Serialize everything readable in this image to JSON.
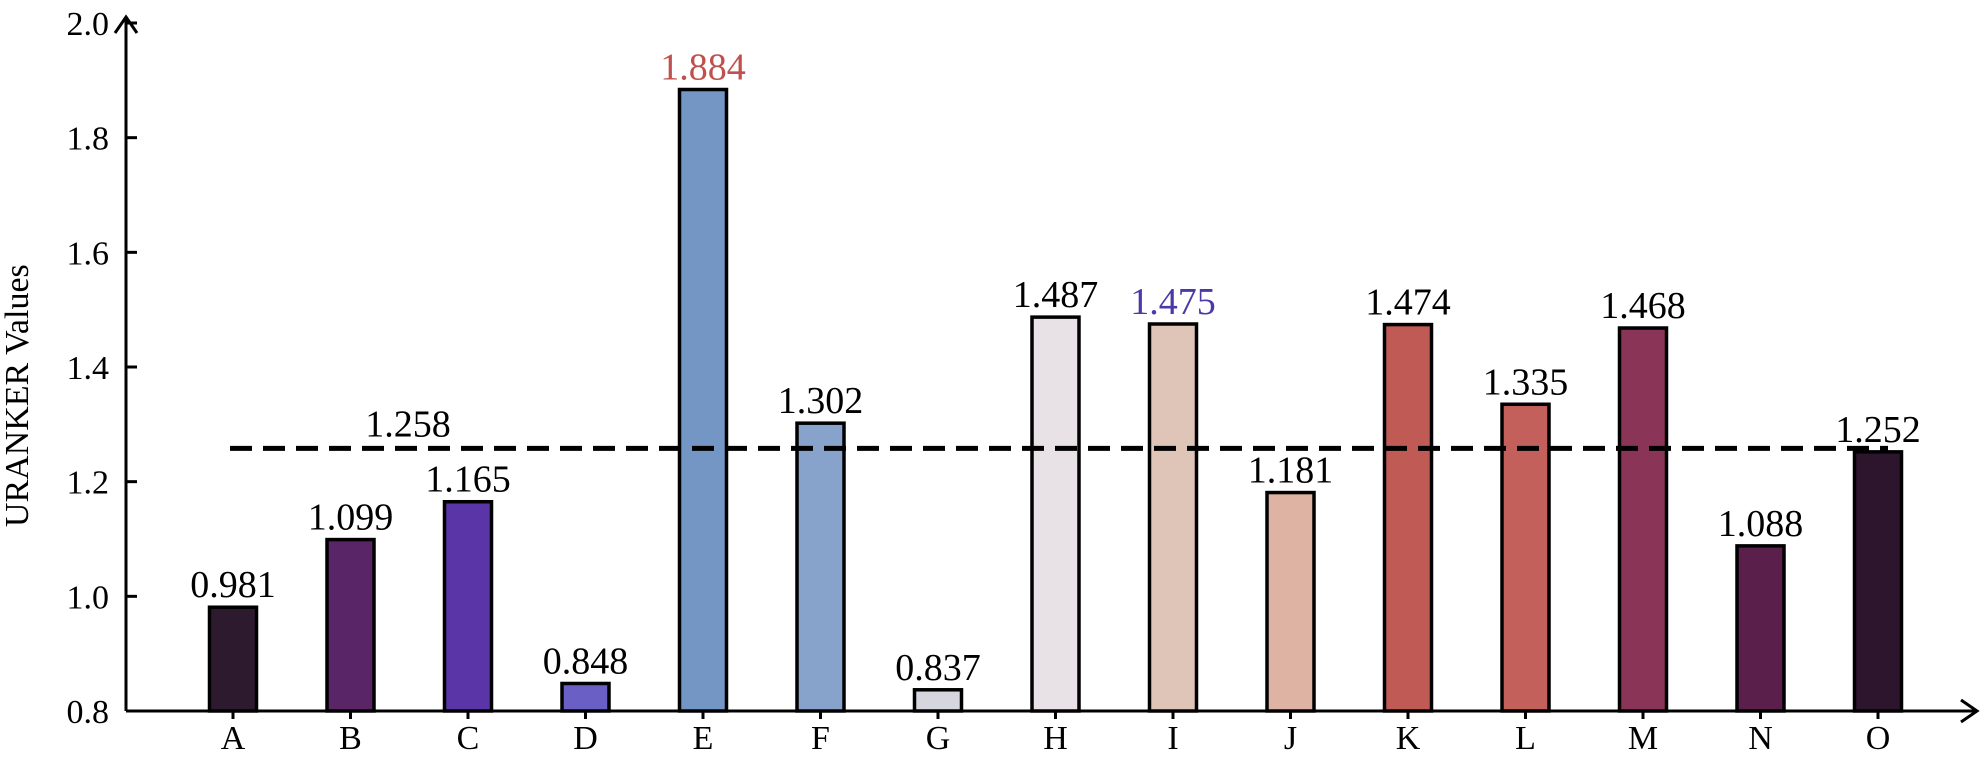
{
  "chart_data": {
    "type": "bar",
    "title": "",
    "xlabel": "",
    "ylabel": "URANKER Values",
    "ylim": [
      0.8,
      2.0
    ],
    "yticks": [
      "0.8",
      "1.0",
      "1.2",
      "1.4",
      "1.6",
      "1.8",
      "2.0"
    ],
    "grid": false,
    "categories": [
      "A",
      "B",
      "C",
      "D",
      "E",
      "F",
      "G",
      "H",
      "I",
      "J",
      "K",
      "L",
      "M",
      "N",
      "O"
    ],
    "values": [
      0.981,
      1.099,
      1.165,
      0.848,
      1.884,
      1.302,
      0.837,
      1.487,
      1.475,
      1.181,
      1.474,
      1.335,
      1.468,
      1.088,
      1.252
    ],
    "value_labels": [
      "0.981",
      "1.099",
      "1.165",
      "0.848",
      "1.884",
      "1.302",
      "0.837",
      "1.487",
      "1.475",
      "1.181",
      "1.474",
      "1.335",
      "1.468",
      "1.088",
      "1.252"
    ],
    "bar_colors": [
      "#2e1a2e",
      "#5a2566",
      "#5a35a8",
      "#6a5fc4",
      "#7396c4",
      "#87a3cc",
      "#d6d6de",
      "#e8e1e6",
      "#dfc4b8",
      "#dfb3a3",
      "#bf5a55",
      "#c4605c",
      "#8a3458",
      "#5a1f4a",
      "#2d152d"
    ],
    "label_colors": [
      "#000000",
      "#000000",
      "#000000",
      "#000000",
      "#c0504d",
      "#000000",
      "#000000",
      "#000000",
      "#4a3aa8",
      "#000000",
      "#000000",
      "#000000",
      "#000000",
      "#000000",
      "#000000"
    ],
    "mean_line": {
      "value": 1.258,
      "label": "1.258"
    }
  }
}
